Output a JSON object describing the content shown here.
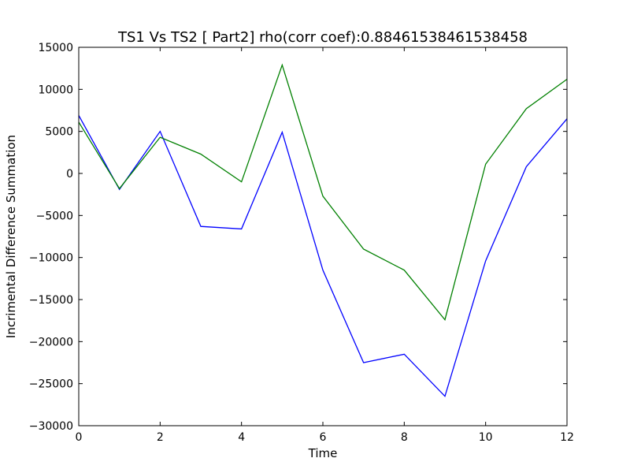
{
  "chart_data": {
    "type": "line",
    "title": "TS1 Vs TS2 [ Part2] rho(corr coef):0.88461538461538458",
    "xlabel": "Time",
    "ylabel": "Incrimental Difference Summation",
    "xlim": [
      0,
      12
    ],
    "ylim": [
      -30000,
      15000
    ],
    "xticks": [
      0,
      2,
      4,
      6,
      8,
      10,
      12
    ],
    "xtick_labels": [
      "0",
      "2",
      "4",
      "6",
      "8",
      "10",
      "12"
    ],
    "yticks": [
      15000,
      10000,
      5000,
      0,
      -5000,
      -10000,
      -15000,
      -20000,
      -25000,
      -30000
    ],
    "ytick_labels": [
      "15000",
      "10000",
      "5000",
      "0",
      "−5000",
      "−10000",
      "−15000",
      "−20000",
      "−25000",
      "−30000"
    ],
    "grid": false,
    "legend": "none",
    "x": [
      0,
      1,
      2,
      3,
      4,
      5,
      6,
      7,
      8,
      9,
      10,
      11,
      12
    ],
    "series": [
      {
        "color": "#0000ff",
        "values": [
          6900,
          -1900,
          5000,
          -6300,
          -6600,
          4900,
          -11500,
          -22500,
          -21500,
          -26500,
          -10400,
          800,
          6500
        ]
      },
      {
        "color": "#008000",
        "values": [
          6100,
          -1800,
          4300,
          2300,
          -1000,
          12900,
          -2700,
          -9000,
          -11500,
          -17400,
          1100,
          7700,
          11200
        ]
      }
    ]
  }
}
